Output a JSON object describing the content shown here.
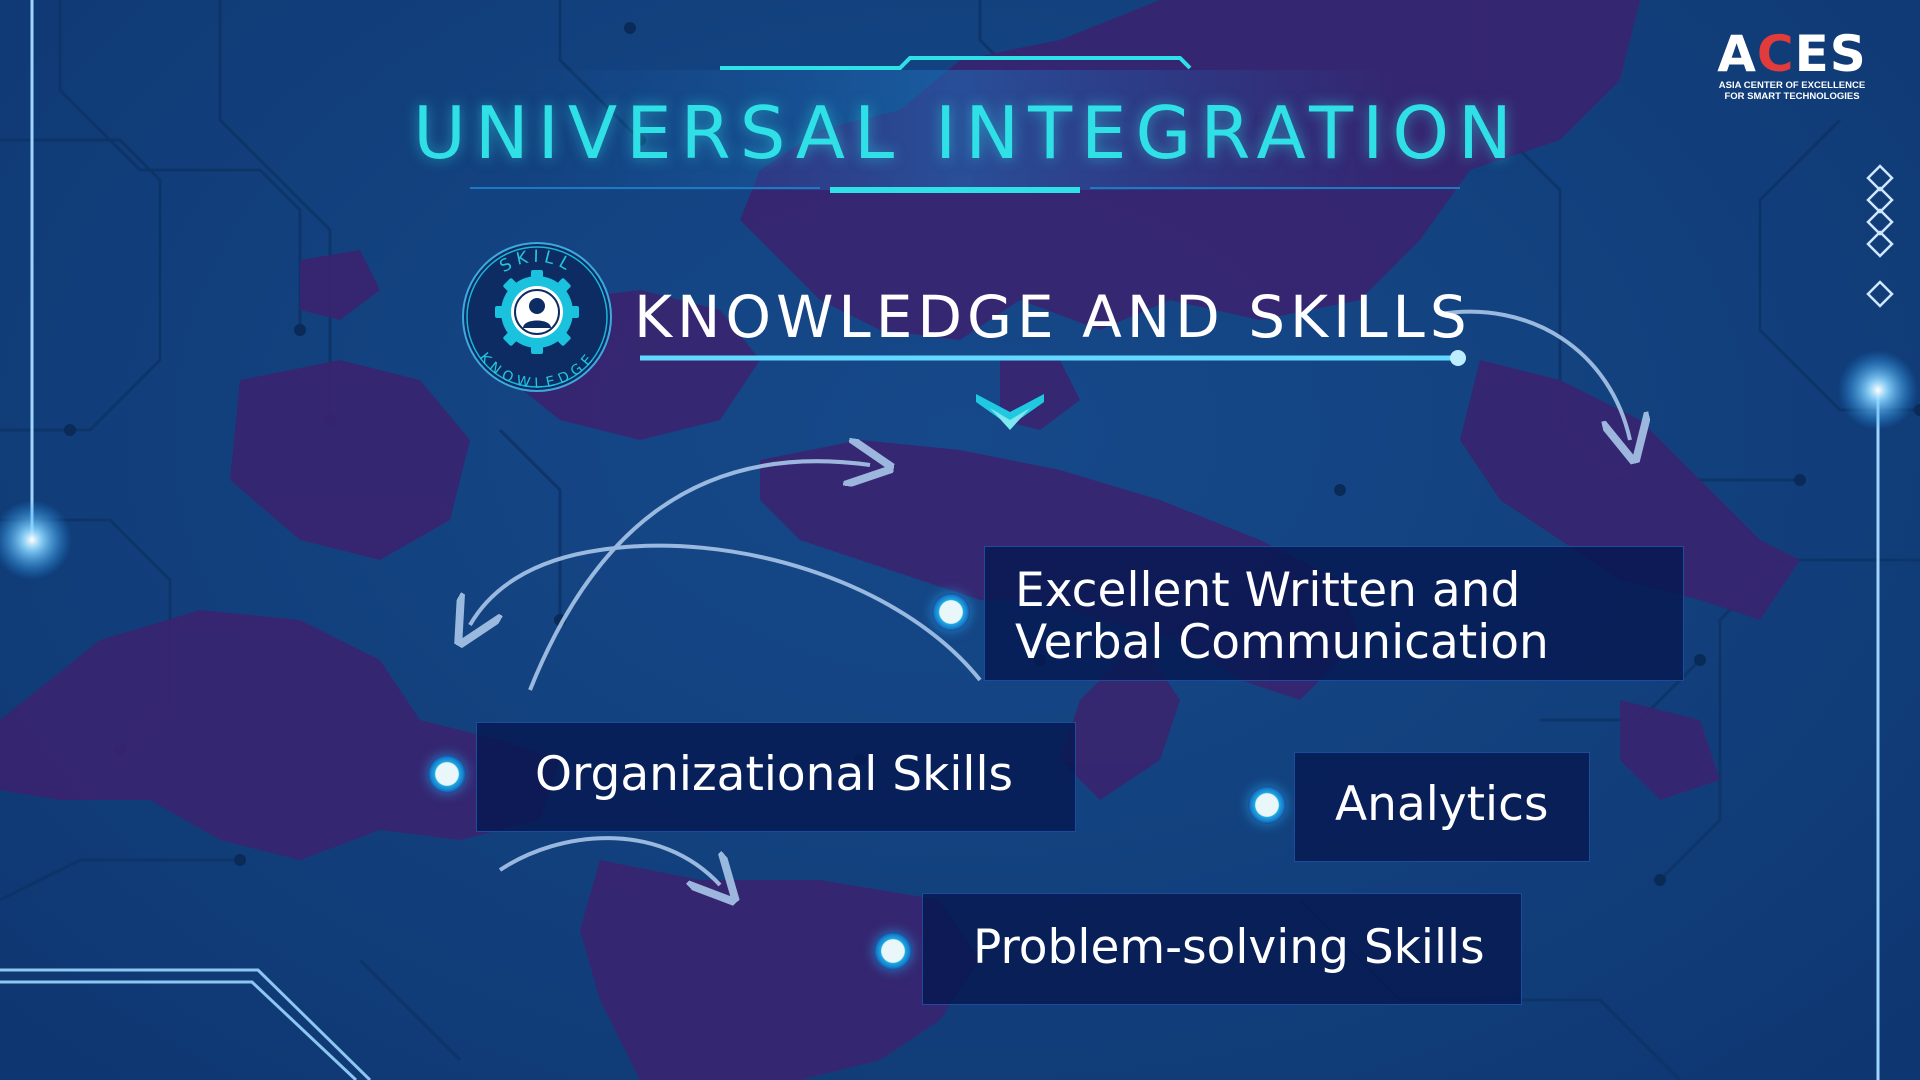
{
  "slide": {
    "title": "UNIVERSAL INTEGRATION",
    "section_title": "KNOWLEDGE AND SKILLS"
  },
  "logo": {
    "word_prefix": "A",
    "word_c": "C",
    "word_suffix": "ES",
    "line1": "ASIA CENTER OF EXCELLENCE",
    "line2": "FOR SMART TECHNOLOGIES"
  },
  "badge": {
    "top_text": "SKILL",
    "bottom_text": "KNOWLEDGE"
  },
  "skills": [
    {
      "line1": "Excellent Written and",
      "line2": "Verbal Communication"
    },
    {
      "label": "Organizational Skills"
    },
    {
      "label": "Analytics"
    },
    {
      "label": "Problem-solving Skills"
    }
  ],
  "colors": {
    "background": "#12407d",
    "map": "#3a2470",
    "accent_cyan": "#2fe0e6",
    "box": "#061850",
    "logo_red": "#e23b3b"
  },
  "icons": [
    "gear-person-icon",
    "chevron-down-icon",
    "diamond-icon",
    "arrow-icon",
    "bullet-dot-icon"
  ]
}
